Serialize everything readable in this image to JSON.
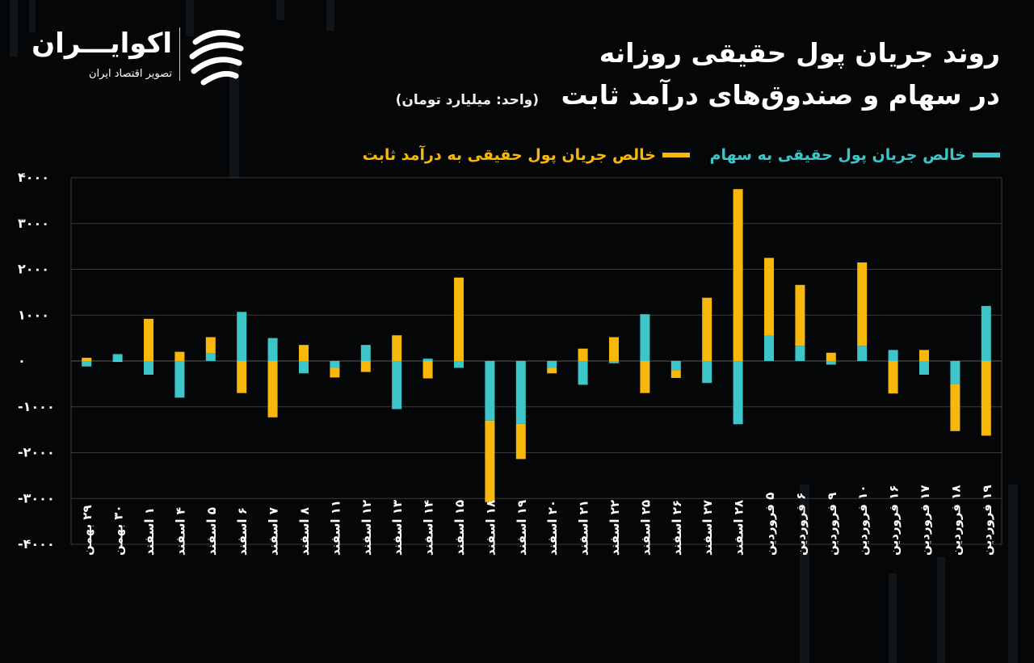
{
  "brand": {
    "name": "اکوایـــران",
    "tagline": "تصویر اقتصاد ایران"
  },
  "title": {
    "line1": "روند جریان پول حقیقی روزانه",
    "line2": "در سهام و صندوق‌های درآمد ثابت",
    "unit": "(واحد: میلیارد تومان)"
  },
  "colors": {
    "background": "#050607",
    "stocks": "#3cc6c9",
    "fixed_income": "#f7b80b",
    "grid": "#3a3a3a"
  },
  "chart_data": {
    "type": "bar",
    "stacked": true,
    "grid": true,
    "legend_position": "top-right",
    "ylim": [
      -4000,
      4000
    ],
    "yticks": [
      4000,
      3000,
      2000,
      1000,
      0,
      -1000,
      -2000,
      -3000,
      -4000
    ],
    "ytick_labels": [
      "۴۰۰۰",
      "۳۰۰۰",
      "۲۰۰۰",
      "۱۰۰۰",
      "۰",
      "-۱۰۰۰",
      "-۲۰۰۰",
      "-۳۰۰۰",
      "-۴۰۰۰"
    ],
    "categories": [
      "۲۹ بهمن",
      "۳۰ بهمن",
      "۱ اسفند",
      "۴ اسفند",
      "۵ اسفند",
      "۶ اسفند",
      "۷ اسفند",
      "۸ اسفند",
      "۱۱ اسفند",
      "۱۲ اسفند",
      "۱۳ اسفند",
      "۱۴ اسفند",
      "۱۵ اسفند",
      "۱۸ اسفند",
      "۱۹ اسفند",
      "۲۰ اسفند",
      "۲۱ اسفند",
      "۲۲ اسفند",
      "۲۵ اسفند",
      "۲۶ اسفند",
      "۲۷ اسفند",
      "۲۸ اسفند",
      "۵ فروردین",
      "۶ فروردین",
      "۹ فروردین",
      "۱۰ فروردین",
      "۱۶ فروردین",
      "۱۷ فروردین",
      "۱۸ فروردین",
      "۱۹ فروردین"
    ],
    "series": [
      {
        "name": "خالص جریان پول حقیقی به سهام",
        "values": [
          -120,
          150,
          -300,
          -800,
          170,
          1070,
          500,
          -270,
          -150,
          350,
          -1050,
          50,
          -150,
          -1300,
          -1370,
          -150,
          -520,
          -50,
          1020,
          -200,
          -480,
          -1380,
          550,
          330,
          -80,
          330,
          240,
          -300,
          -500,
          1200
        ]
      },
      {
        "name": "خالص جریان پول حقیقی به درآمد ثابت",
        "values": [
          70,
          -20,
          920,
          200,
          350,
          -700,
          -1230,
          350,
          -210,
          -240,
          560,
          -380,
          1820,
          -1780,
          -770,
          -120,
          270,
          520,
          -700,
          -170,
          1380,
          3750,
          1700,
          1330,
          180,
          1820,
          -710,
          240,
          -1030,
          -1630
        ]
      }
    ]
  }
}
